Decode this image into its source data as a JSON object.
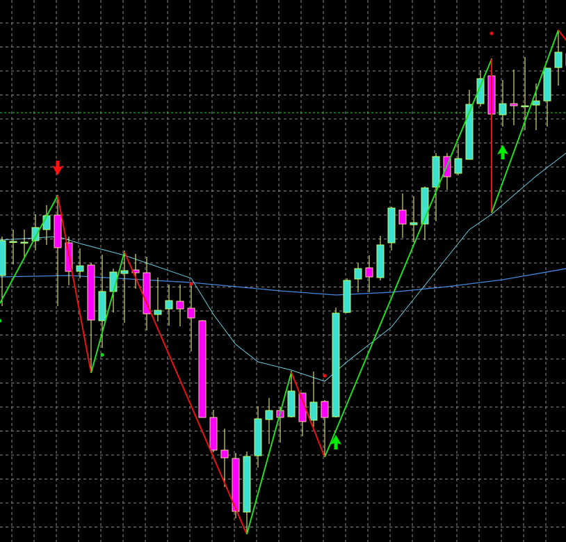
{
  "chart_data": {
    "type": "candlestick",
    "title": "",
    "xlabel": "",
    "ylabel": "",
    "ylim": [
      0,
      779
    ],
    "grid": true,
    "legend": "none",
    "colors": {
      "background": "#000000",
      "grid": "#8a8a8a",
      "bull_body": "#40E0D0",
      "bull_border": "#B8FF60",
      "bear_body": "#FF00FF",
      "bear_border": "#FFD0A0",
      "wick": "#FFFF90",
      "zigzag_up": "#22DD22",
      "zigzag_down": "#EE1111",
      "ma_fast": "#66CCDD",
      "ma_slow": "#4488DD",
      "level_line": "#33CC33",
      "arrow_up": "#00EE00",
      "arrow_down": "#FF1111",
      "dot_red": "#EE1111",
      "dot_green": "#11DD11"
    },
    "candles_ohlc": [
      [
        383,
        439,
        339,
        433
      ],
      [
        432,
        449,
        399,
        432
      ],
      [
        431,
        449,
        409,
        431
      ],
      [
        433,
        471,
        419,
        452
      ],
      [
        449,
        484,
        427,
        469
      ],
      [
        470,
        499,
        339,
        423
      ],
      [
        430,
        439,
        369,
        389
      ],
      [
        389,
        422,
        379,
        397
      ],
      [
        398,
        401,
        244,
        319
      ],
      [
        318,
        413,
        279,
        360
      ],
      [
        360,
        393,
        330,
        388
      ],
      [
        386,
        419,
        315,
        390
      ],
      [
        391,
        414,
        364,
        387
      ],
      [
        387,
        410,
        304,
        328
      ],
      [
        327,
        380,
        317,
        333
      ],
      [
        335,
        370,
        311,
        347
      ],
      [
        346,
        370,
        310,
        335
      ],
      [
        336,
        371,
        274,
        322
      ],
      [
        318,
        319,
        179,
        179
      ],
      [
        179,
        190,
        129,
        132
      ],
      [
        132,
        163,
        79,
        121
      ],
      [
        120,
        128,
        34,
        44
      ],
      [
        43,
        130,
        11,
        123
      ],
      [
        124,
        195,
        107,
        177
      ],
      [
        176,
        207,
        141,
        189
      ],
      [
        189,
        194,
        143,
        179
      ],
      [
        180,
        246,
        179,
        217
      ],
      [
        214,
        214,
        152,
        173
      ],
      [
        175,
        245,
        166,
        201
      ],
      [
        202,
        204,
        122,
        179
      ],
      [
        180,
        337,
        179,
        329
      ],
      [
        330,
        379,
        329,
        376
      ],
      [
        378,
        401,
        359,
        393
      ],
      [
        394,
        412,
        359,
        381
      ],
      [
        380,
        440,
        376,
        427
      ],
      [
        430,
        482,
        419,
        480
      ],
      [
        477,
        501,
        437,
        457
      ],
      [
        456,
        497,
        431,
        459
      ],
      [
        457,
        511,
        434,
        509
      ],
      [
        510,
        559,
        461,
        554
      ],
      [
        554,
        559,
        506,
        525
      ],
      [
        530,
        572,
        527,
        551
      ],
      [
        550,
        650,
        550,
        629
      ],
      [
        630,
        678,
        626,
        666
      ],
      [
        670,
        695,
        473,
        615
      ],
      [
        614,
        664,
        597,
        630
      ],
      [
        630,
        679,
        599,
        627
      ],
      [
        627,
        697,
        592,
        627
      ],
      [
        628,
        659,
        592,
        634
      ],
      [
        634,
        681,
        597,
        681
      ],
      [
        682,
        736,
        656,
        704
      ],
      [
        702,
        740,
        660,
        685
      ]
    ],
    "zigzag": [
      [
        -0.2,
        343
      ],
      [
        5,
        498
      ],
      [
        8,
        243
      ],
      [
        11,
        417
      ],
      [
        22,
        11
      ],
      [
        26,
        244
      ],
      [
        29,
        122
      ],
      [
        44,
        694
      ],
      [
        44,
        473
      ],
      [
        50,
        736
      ],
      [
        50.7,
        721
      ]
    ],
    "ma_fast": [
      [
        -0.2,
        434
      ],
      [
        5,
        439
      ],
      [
        7,
        429
      ],
      [
        11,
        412
      ],
      [
        17,
        379
      ],
      [
        19,
        327
      ],
      [
        21,
        284
      ],
      [
        23,
        259
      ],
      [
        26,
        247
      ],
      [
        29,
        231
      ],
      [
        31,
        259
      ],
      [
        35,
        309
      ],
      [
        38,
        369
      ],
      [
        42,
        449
      ],
      [
        44,
        471
      ],
      [
        48,
        526
      ],
      [
        50.7,
        559
      ]
    ],
    "ma_slow": [
      [
        -0.2,
        381
      ],
      [
        6,
        383
      ],
      [
        17,
        373
      ],
      [
        25,
        361
      ],
      [
        30,
        355
      ],
      [
        35,
        359
      ],
      [
        40,
        367
      ],
      [
        45,
        377
      ],
      [
        50.7,
        393
      ]
    ],
    "level_line": 617,
    "arrows": [
      {
        "direction": "down",
        "bar": 5,
        "value": 537
      },
      {
        "direction": "up",
        "bar": 30,
        "value": 144
      },
      {
        "direction": "up",
        "bar": 45,
        "value": 561
      }
    ],
    "dots": [
      {
        "color": "red",
        "bar": 17,
        "value": 371
      },
      {
        "color": "red",
        "bar": 29,
        "value": 239
      },
      {
        "color": "red",
        "bar": 44,
        "value": 731
      },
      {
        "color": "green",
        "bar": -0.2,
        "value": 318
      },
      {
        "color": "green",
        "bar": 9,
        "value": 269
      }
    ]
  }
}
